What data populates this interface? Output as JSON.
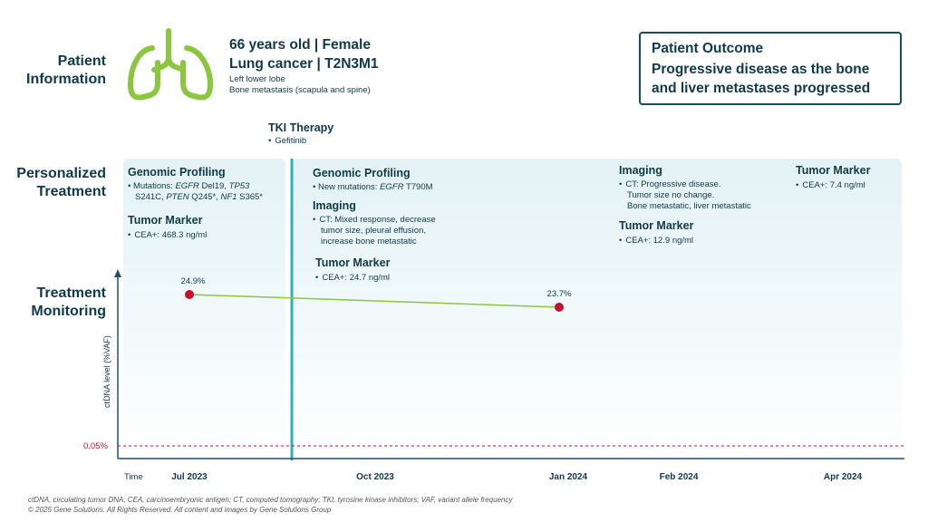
{
  "patient": {
    "section_label_1": "Patient",
    "section_label_2": "Information",
    "line1": "66 years old | Female",
    "line2": "Lung cancer | T2N3M1",
    "line3": "Left lower lobe",
    "line4": "Bone metastasis (scapula and spine)"
  },
  "outcome": {
    "title": "Patient Outcome",
    "text_line1": "Progressive disease as the bone",
    "text_line2": "and liver metastases progressed"
  },
  "therapy": {
    "title": "TKI Therapy",
    "drug": "Gefitinib"
  },
  "sections": {
    "personalized_1": "Personalized",
    "personalized_2": "Treatment",
    "monitoring_1": "Treatment",
    "monitoring_2": "Monitoring"
  },
  "timepoints": {
    "jul2023": {
      "genomic_title": "Genomic Profiling",
      "mutations_prefix": "Mutations: ",
      "g1": "EGFR",
      "g1_var": " Del19, ",
      "g2": "TP53",
      "g2_var": "S241C, ",
      "g3": "PTEN",
      "g3_var": " Q245*, ",
      "g4": "NF1",
      "g4_var": " S365*",
      "marker_title": "Tumor Marker",
      "marker_value": "CEA+: 468.3 ng/ml"
    },
    "oct2023": {
      "genomic_title": "Genomic Profiling",
      "mutation_prefix": "New mutations: ",
      "gene": "EGFR",
      "gene_var": " T790M",
      "imaging_title": "Imaging",
      "imaging_line1": "CT: Mixed response, decrease",
      "imaging_line2": "tumor size, pleural effusion,",
      "imaging_line3": "increase bone metastatic",
      "marker_title": "Tumor Marker",
      "marker_value": "CEA+: 24.7 ng/ml"
    },
    "feb2024": {
      "imaging_title": "Imaging",
      "imaging_line1": "CT: Progressive disease.",
      "imaging_line2": "Tumor size no change.",
      "imaging_line3": "Bone metastatic, liver metastatic",
      "marker_title": "Tumor Marker",
      "marker_value": "CEA+: 12.9 ng/ml"
    },
    "apr2024": {
      "marker_title": "Tumor Marker",
      "marker_value": "CEA+: 7.4 ng/ml"
    }
  },
  "axis": {
    "ylabel": "ctDNA level (%VAF)",
    "threshold_label": "0.05%",
    "time_label": "Time",
    "dates": [
      "Jul 2023",
      "Oct 2023",
      "Jan 2024",
      "Feb 2024",
      "Apr 2024"
    ]
  },
  "colors": {
    "accent_green": "#8cc63f",
    "therapy_line": "#2bb3b3",
    "point_red": "#c8102e",
    "dark_text": "#0f3a47"
  },
  "chart_data": {
    "type": "line",
    "title": "",
    "xlabel": "Time",
    "ylabel": "ctDNA level (%VAF)",
    "categories": [
      "Jul 2023",
      "Oct 2023",
      "Jan 2024",
      "Feb 2024",
      "Apr 2024"
    ],
    "series": [
      {
        "name": "ctDNA VAF",
        "points": [
          {
            "x": "Jul 2023",
            "y": 24.9,
            "label": "24.9%"
          },
          {
            "x": "Jan 2024",
            "y": 23.7,
            "label": "23.7%"
          }
        ]
      }
    ],
    "threshold": {
      "value": 0.05,
      "label": "0.05%"
    },
    "grid": false
  },
  "footer": {
    "line1": "ctDNA, circulating tumor DNA; CEA, carcinoembryonic antigen; CT, computed tomography; TKI, tyrosine kinase inhibitors; VAF, variant allele frequency",
    "line2": "© 2025 Gene Solutions. All Rights Reserved. All content and images by Gene Solutions Group"
  }
}
